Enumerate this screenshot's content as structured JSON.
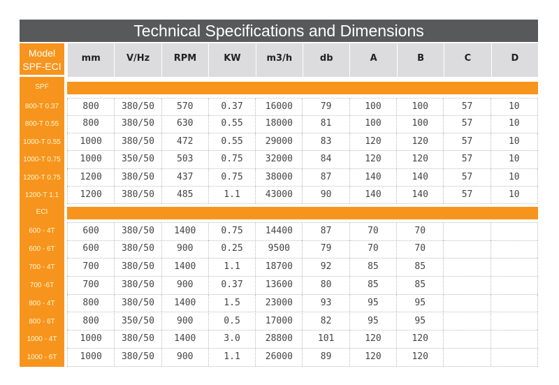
{
  "title": "Technical Specifications and Dimensions",
  "model_header": [
    "Model",
    "SPF-ECI"
  ],
  "columns": [
    "mm",
    "V/Hz",
    "RPM",
    "KW",
    "m3/h",
    "db",
    "A",
    "B",
    "C",
    "D"
  ],
  "colors": {
    "orange": "#f7941d",
    "title_bg": "#58595b",
    "header_bg": "#dcdcde"
  },
  "groups": [
    {
      "name": "SPF",
      "rows": [
        {
          "model": "800-T 0.37",
          "values": [
            "800",
            "380/50",
            "570",
            "0.37",
            "16000",
            "79",
            "100",
            "100",
            "57",
            "10"
          ]
        },
        {
          "model": "800-T 0.55",
          "values": [
            "800",
            "380/50",
            "630",
            "0.55",
            "18000",
            "81",
            "100",
            "100",
            "57",
            "10"
          ]
        },
        {
          "model": "1000-T 0.55",
          "values": [
            "1000",
            "380/50",
            "472",
            "0.55",
            "29000",
            "83",
            "120",
            "120",
            "57",
            "10"
          ]
        },
        {
          "model": "1000-T 0.75",
          "values": [
            "1000",
            "350/50",
            "503",
            "0.75",
            "32000",
            "84",
            "120",
            "120",
            "57",
            "10"
          ]
        },
        {
          "model": "1200-T 0.75",
          "values": [
            "1200",
            "380/50",
            "437",
            "0.75",
            "38000",
            "87",
            "140",
            "140",
            "57",
            "10"
          ]
        },
        {
          "model": "1200-T 1.1",
          "values": [
            "1200",
            "380/50",
            "485",
            "1.1",
            "43000",
            "90",
            "140",
            "140",
            "57",
            "10"
          ]
        }
      ]
    },
    {
      "name": "ECI",
      "rows": [
        {
          "model": "600 - 4T",
          "values": [
            "600",
            "380/50",
            "1400",
            "0.75",
            "14400",
            "87",
            "70",
            "70",
            "",
            ""
          ]
        },
        {
          "model": "600 - 6T",
          "values": [
            "600",
            "380/50",
            "900",
            "0.25",
            "9500",
            "79",
            "70",
            "70",
            "",
            ""
          ]
        },
        {
          "model": "700 - 4T",
          "values": [
            "700",
            "380/50",
            "1400",
            "1.1",
            "18700",
            "92",
            "85",
            "85",
            "",
            ""
          ]
        },
        {
          "model": "700 -6T",
          "values": [
            "700",
            "380/50",
            "900",
            "0.37",
            "13600",
            "80",
            "85",
            "85",
            "",
            ""
          ]
        },
        {
          "model": "800 - 4T",
          "values": [
            "800",
            "380/50",
            "1400",
            "1.5",
            "23000",
            "93",
            "95",
            "95",
            "",
            ""
          ]
        },
        {
          "model": "800 - 6T",
          "values": [
            "800",
            "350/50",
            "900",
            "0.5",
            "17000",
            "82",
            "95",
            "95",
            "",
            ""
          ]
        },
        {
          "model": "1000 - 4T",
          "values": [
            "1000",
            "380/50",
            "1400",
            "3.0",
            "28800",
            "101",
            "120",
            "120",
            "",
            ""
          ]
        },
        {
          "model": "1000 - 6T",
          "values": [
            "1000",
            "380/50",
            "900",
            "1.1",
            "26000",
            "89",
            "120",
            "120",
            "",
            ""
          ]
        }
      ]
    }
  ]
}
